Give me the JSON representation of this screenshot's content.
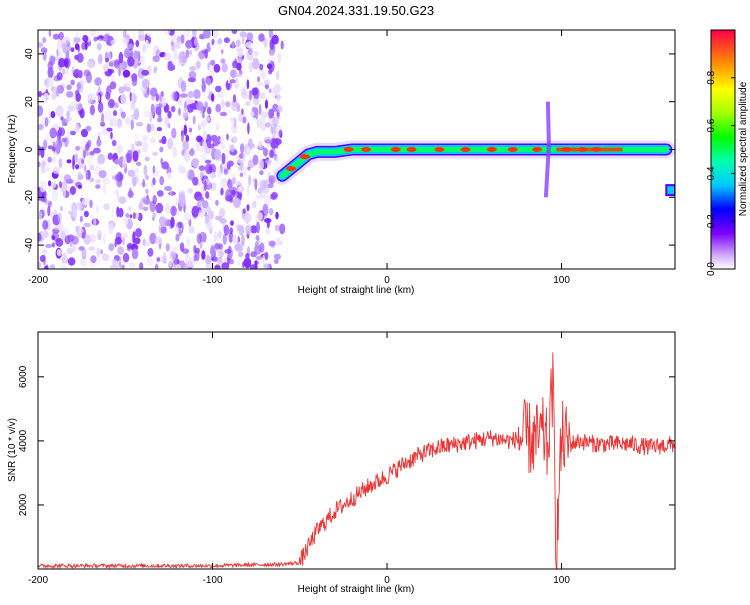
{
  "title": "GN04.2024.331.19.50.G23",
  "chart_data": [
    {
      "type": "heatmap",
      "xlabel": "Height of straight line (km)",
      "ylabel": "Frequency (Hz)",
      "xlim": [
        -200,
        165
      ],
      "ylim": [
        -50,
        50
      ],
      "x_ticks": [
        -200,
        -100,
        0,
        100
      ],
      "y_ticks": [
        -40,
        -20,
        0,
        20,
        40
      ],
      "colorbar": {
        "label": "Normalized spectral amplitude",
        "range": [
          0,
          1
        ],
        "ticks": [
          0.0,
          0.2,
          0.4,
          0.6,
          0.8
        ]
      },
      "signal_track": {
        "description_points": [
          [
            -60,
            -11
          ],
          [
            -55,
            -8
          ],
          [
            -50,
            -5
          ],
          [
            -45,
            -2
          ],
          [
            -40,
            -1
          ],
          [
            -30,
            -1
          ],
          [
            -20,
            0
          ],
          [
            0,
            0
          ],
          [
            50,
            0
          ],
          [
            80,
            0
          ],
          [
            90,
            0
          ],
          [
            100,
            0
          ],
          [
            130,
            0
          ],
          [
            160,
            0
          ]
        ],
        "noise_region_x": [
          -200,
          -60
        ],
        "spike_x": 91,
        "secondary_feature": {
          "x": [
            160,
            165
          ],
          "y": -17
        }
      },
      "grid": false,
      "colormap": "rainbow"
    },
    {
      "type": "line",
      "xlabel": "Height of straight line (km)",
      "ylabel": "SNR (10 * v/v)",
      "xlim": [
        -200,
        165
      ],
      "ylim": [
        0,
        7400
      ],
      "x_ticks": [
        -200,
        -100,
        0,
        100
      ],
      "y_ticks": [
        2000,
        4000,
        6000
      ],
      "color": "#ee3333",
      "series": [
        {
          "x": [
            -200,
            -150,
            -100,
            -60,
            -50,
            -45,
            -40,
            -30,
            -20,
            -10,
            0,
            10,
            20,
            30,
            40,
            50,
            60,
            70,
            80,
            85,
            90,
            92,
            95,
            97,
            100,
            105,
            110,
            120,
            130,
            140,
            150,
            165
          ],
          "values": [
            100,
            100,
            100,
            150,
            200,
            700,
            1200,
            1800,
            2200,
            2600,
            2900,
            3300,
            3600,
            3800,
            3900,
            4000,
            4100,
            4000,
            4100,
            4000,
            4200,
            3700,
            5800,
            500,
            4100,
            3900,
            4000,
            3900,
            3900,
            3900,
            3800,
            3900
          ]
        }
      ],
      "grid": false
    }
  ]
}
